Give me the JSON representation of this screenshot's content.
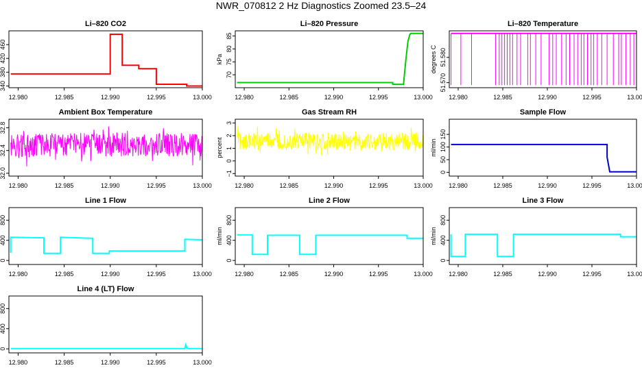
{
  "title": "NWR_070812 2 Hz Diagnostics Zoomed 23.5–24",
  "chart_data": [
    {
      "type": "line",
      "title": "Li–820 CO2",
      "ylabel": "Licor ppm",
      "color": "#ff0000",
      "xlim": [
        12.979,
        13.0
      ],
      "ylim": [
        335,
        500
      ],
      "xticks": [
        12.98,
        12.985,
        12.99,
        12.995,
        13.0
      ],
      "xticklabels": [
        "12.980",
        "12.985",
        "12.990",
        "12.995",
        "13.000"
      ],
      "yticks": [
        340,
        380,
        420,
        460
      ],
      "yticklabels": [
        "340",
        "380",
        "420",
        "460"
      ],
      "series": [
        {
          "x": [
            12.9792,
            12.99,
            12.99,
            12.9913,
            12.9913,
            12.9931,
            12.9931,
            12.995,
            12.995,
            12.9983,
            12.9983,
            12.9988,
            13.0
          ],
          "y": [
            375,
            375,
            490,
            490,
            400,
            400,
            390,
            390,
            345,
            345,
            340,
            340,
            340
          ]
        }
      ]
    },
    {
      "type": "line",
      "title": "Li–820 Pressure",
      "ylabel": "kPa",
      "color": "#00cc00",
      "xlim": [
        12.979,
        13.0
      ],
      "ylim": [
        65,
        87
      ],
      "xticks": [
        12.98,
        12.985,
        12.99,
        12.995,
        13.0
      ],
      "xticklabels": [
        "12.980",
        "12.985",
        "12.990",
        "12.995",
        "13.000"
      ],
      "yticks": [
        70,
        75,
        80,
        85
      ],
      "yticklabels": [
        "70",
        "75",
        "80",
        "85"
      ],
      "series": [
        {
          "x": [
            12.9792,
            12.9966,
            12.9966,
            12.9978,
            12.9979,
            12.9981,
            12.9983,
            12.9985,
            12.9986,
            13.0
          ],
          "y": [
            67,
            67,
            66.3,
            66.3,
            70,
            77,
            83,
            85.5,
            86,
            86
          ]
        }
      ]
    },
    {
      "type": "line",
      "title": "Li–820 Temperature",
      "ylabel": "degrees C",
      "color": "#ff00ff",
      "xlim": [
        12.979,
        13.0
      ],
      "ylim": [
        51.568,
        51.5905
      ],
      "xticks": [
        12.98,
        12.985,
        12.99,
        12.995,
        13.0
      ],
      "xticklabels": [
        "12.980",
        "12.985",
        "12.990",
        "12.995",
        "13.000"
      ],
      "yticks": [
        51.57,
        51.58
      ],
      "yticklabels": [
        "51.570",
        "51.580"
      ],
      "series": [
        {
          "x": [
            12.9792,
            13.0
          ],
          "y": [
            51.5895,
            51.5895
          ]
        }
      ],
      "spikes": {
        "low": 51.569,
        "high": 51.5895,
        "x": [
          12.9792,
          12.9803,
          12.9815,
          12.9842,
          12.9846,
          12.9849,
          12.9852,
          12.9855,
          12.9858,
          12.9861,
          12.9866,
          12.987,
          12.9878,
          12.9881,
          12.9887,
          12.9893,
          12.9902,
          12.9906,
          12.991,
          12.9916,
          12.9921,
          12.9925,
          12.993,
          12.9934,
          12.9938,
          12.9941,
          12.9945,
          12.9949,
          12.9952,
          12.9956,
          12.9961,
          12.9967,
          12.9974,
          12.998,
          12.9983,
          12.9988,
          12.9993,
          12.9997
        ]
      }
    },
    {
      "type": "line",
      "title": "Ambient Box Temperature",
      "ylabel": "degrees C",
      "color": "#ff00ff",
      "xlim": [
        12.979,
        13.0
      ],
      "ylim": [
        31.95,
        32.95
      ],
      "xticks": [
        12.98,
        12.985,
        12.99,
        12.995,
        13.0
      ],
      "xticklabels": [
        "12.980",
        "12.985",
        "12.990",
        "12.995",
        "13.000"
      ],
      "yticks": [
        32.0,
        32.4,
        32.8
      ],
      "yticklabels": [
        "32.0",
        "32.4",
        "32.8"
      ],
      "noise": {
        "x0": 12.9792,
        "x1": 13.0,
        "center": 32.5,
        "amp": 0.38,
        "n": 420
      }
    },
    {
      "type": "line",
      "title": "Gas Stream RH",
      "ylabel": "percent",
      "color": "#ffff00",
      "xlim": [
        12.979,
        13.0
      ],
      "ylim": [
        -1.2,
        3.3
      ],
      "xticks": [
        12.98,
        12.985,
        12.99,
        12.995,
        13.0
      ],
      "xticklabels": [
        "12.980",
        "12.985",
        "12.990",
        "12.995",
        "13.000"
      ],
      "yticks": [
        -1,
        0,
        1,
        2,
        3
      ],
      "yticklabels": [
        "−1",
        "0",
        "1",
        "2",
        "3"
      ],
      "noise": {
        "x0": 12.9792,
        "x1": 13.0,
        "center": 1.55,
        "amp": 1.25,
        "n": 420
      }
    },
    {
      "type": "line",
      "title": "Sample Flow",
      "ylabel": "ml/min",
      "color": "#0000cc",
      "xlim": [
        12.979,
        13.0
      ],
      "ylim": [
        -15,
        210
      ],
      "xticks": [
        12.98,
        12.985,
        12.99,
        12.995,
        13.0
      ],
      "xticklabels": [
        "12.980",
        "12.985",
        "12.990",
        "12.995",
        "13.000"
      ],
      "yticks": [
        0,
        50,
        100,
        150
      ],
      "yticklabels": [
        "0",
        "50",
        "100",
        "150"
      ],
      "series": [
        {
          "x": [
            12.9792,
            12.9967,
            12.9967,
            12.997,
            13.0
          ],
          "y": [
            110,
            110,
            60,
            2,
            2
          ]
        }
      ]
    },
    {
      "type": "line",
      "title": "Line 1 Flow",
      "ylabel": "ml/min",
      "color": "#00ffff",
      "xlim": [
        12.979,
        13.0
      ],
      "ylim": [
        -80,
        1050
      ],
      "xticks": [
        12.98,
        12.985,
        12.99,
        12.995,
        13.0
      ],
      "xticklabels": [
        "12.980",
        "12.985",
        "12.990",
        "12.995",
        "13.000"
      ],
      "yticks": [
        0,
        400,
        800
      ],
      "yticklabels": [
        "0",
        "400",
        "800"
      ],
      "series": [
        {
          "x": [
            12.9792,
            12.9792,
            12.9828,
            12.9828,
            12.9846,
            12.9846,
            12.9881,
            12.9881,
            12.9899,
            12.9899,
            12.9981,
            12.9981,
            13.0
          ],
          "y": [
            150,
            460,
            450,
            140,
            140,
            460,
            440,
            140,
            140,
            190,
            190,
            420,
            410
          ]
        }
      ]
    },
    {
      "type": "line",
      "title": "Line 2 Flow",
      "ylabel": "ml/min",
      "color": "#00ffff",
      "xlim": [
        12.979,
        13.0
      ],
      "ylim": [
        -80,
        1050
      ],
      "xticks": [
        12.98,
        12.985,
        12.99,
        12.995,
        13.0
      ],
      "xticklabels": [
        "12.980",
        "12.985",
        "12.990",
        "12.995",
        "13.000"
      ],
      "yticks": [
        0,
        400,
        800
      ],
      "yticklabels": [
        "0",
        "400",
        "800"
      ],
      "series": [
        {
          "x": [
            12.9792,
            12.9809,
            12.9809,
            12.9826,
            12.9826,
            12.9862,
            12.9862,
            12.988,
            12.988,
            12.9982,
            12.9982,
            13.0
          ],
          "y": [
            510,
            510,
            120,
            120,
            500,
            500,
            120,
            120,
            500,
            500,
            440,
            440
          ]
        }
      ]
    },
    {
      "type": "line",
      "title": "Line 3 Flow",
      "ylabel": "ml/min",
      "color": "#00ffff",
      "xlim": [
        12.979,
        13.0
      ],
      "ylim": [
        -80,
        1050
      ],
      "xticks": [
        12.98,
        12.985,
        12.99,
        12.995,
        13.0
      ],
      "xticklabels": [
        "12.980",
        "12.985",
        "12.990",
        "12.995",
        "13.000"
      ],
      "yticks": [
        0,
        400,
        800
      ],
      "yticklabels": [
        "0",
        "400",
        "800"
      ],
      "series": [
        {
          "x": [
            12.9792,
            12.9792,
            12.9808,
            12.9808,
            12.9844,
            12.9844,
            12.9862,
            12.9862,
            12.9982,
            12.9982,
            13.0
          ],
          "y": [
            520,
            80,
            80,
            520,
            520,
            80,
            80,
            520,
            520,
            470,
            470
          ]
        }
      ]
    },
    {
      "type": "line",
      "title": "Line 4 (LT) Flow",
      "ylabel": "ml/min",
      "color": "#00ffff",
      "xlim": [
        12.979,
        13.0
      ],
      "ylim": [
        -80,
        1050
      ],
      "xticks": [
        12.98,
        12.985,
        12.99,
        12.995,
        13.0
      ],
      "xticklabels": [
        "12.980",
        "12.985",
        "12.990",
        "12.995",
        "13.000"
      ],
      "yticks": [
        0,
        400,
        800
      ],
      "yticklabels": [
        "0",
        "400",
        "800"
      ],
      "series": [
        {
          "x": [
            12.9792,
            12.9981,
            12.9982,
            12.9983,
            12.9984,
            13.0
          ],
          "y": [
            5,
            5,
            80,
            30,
            5,
            5
          ]
        }
      ]
    }
  ]
}
